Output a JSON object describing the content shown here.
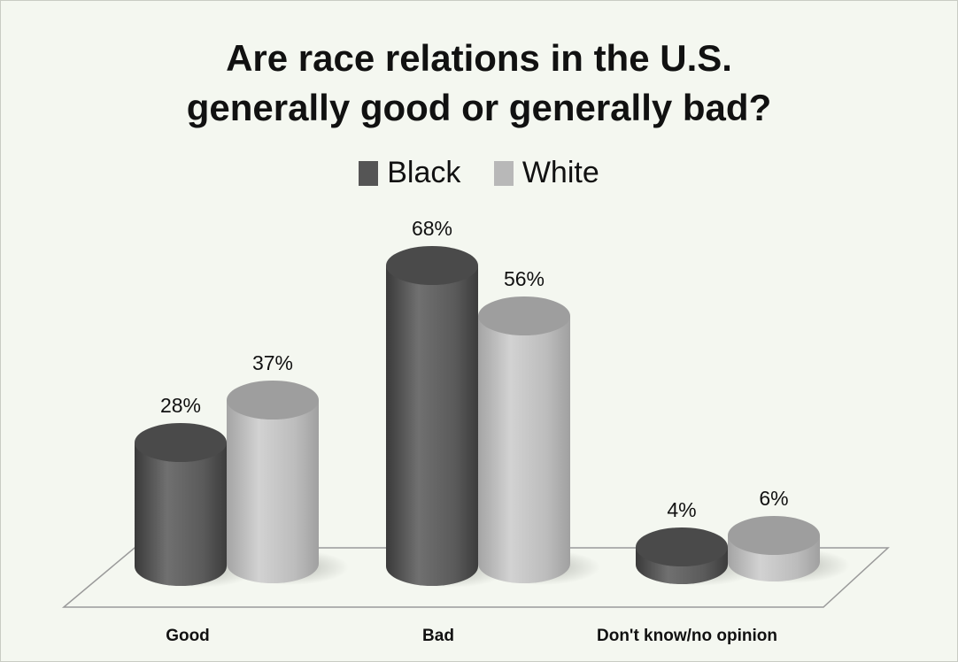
{
  "chart_data": {
    "type": "bar",
    "title_lines": [
      "Are race relations in the U.S.",
      "generally good or generally bad?"
    ],
    "categories": [
      "Good",
      "Bad",
      "Don't know/no opinion"
    ],
    "series": [
      {
        "name": "Black",
        "values": [
          28,
          68,
          4
        ],
        "labels": [
          "28%",
          "68%",
          "4%"
        ],
        "color": "#5a5a5a"
      },
      {
        "name": "White",
        "values": [
          37,
          56,
          6
        ],
        "labels": [
          "37%",
          "56%",
          "6%"
        ],
        "color": "#b5b5b5"
      }
    ],
    "ylim": [
      0,
      100
    ],
    "legend": "top-center",
    "grid": false,
    "colors": {
      "background": "#f4f7f0",
      "floor": "#f4f7f0"
    }
  }
}
